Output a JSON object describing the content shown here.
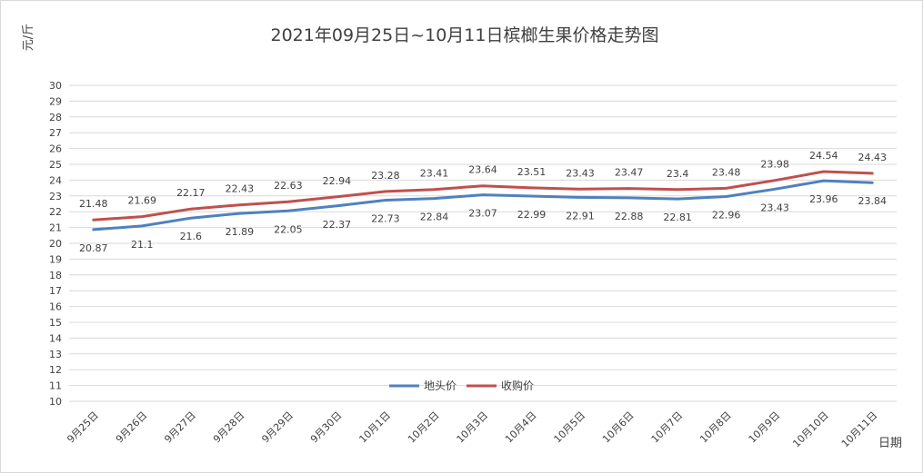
{
  "chart_data": {
    "type": "line",
    "title": "2021年09月25日~10月11日槟榔生果价格走势图",
    "xlabel": "日期",
    "ylabel": "元/斤",
    "ylim": [
      10,
      30
    ],
    "y_ticks": [
      10,
      11,
      12,
      13,
      14,
      15,
      16,
      17,
      18,
      19,
      20,
      21,
      22,
      23,
      24,
      25,
      26,
      27,
      28,
      29,
      30
    ],
    "grid": true,
    "legend_position": "bottom-center",
    "categories": [
      "9月25日",
      "9月26日",
      "9月27日",
      "9月28日",
      "9月29日",
      "9月30日",
      "10月1日",
      "10月2日",
      "10月3日",
      "10月4日",
      "10月5日",
      "10月6日",
      "10月7日",
      "10月8日",
      "10月9日",
      "10月10日",
      "10月11日"
    ],
    "series": [
      {
        "name": "地头价",
        "color": "#4f81bd",
        "values": [
          20.87,
          21.1,
          21.6,
          21.89,
          22.05,
          22.37,
          22.73,
          22.84,
          23.07,
          22.99,
          22.91,
          22.88,
          22.81,
          22.96,
          23.43,
          23.96,
          23.84
        ],
        "labels": [
          "20.87",
          "21.1",
          "21.6",
          "21.89",
          "22.05",
          "22.37",
          "22.73",
          "22.84",
          "23.07",
          "22.99",
          "22.91",
          "22.88",
          "22.81",
          "22.96",
          "23.43",
          "23.96",
          "23.84"
        ],
        "label_position": "below"
      },
      {
        "name": "收购价",
        "color": "#c0504d",
        "values": [
          21.48,
          21.69,
          22.17,
          22.43,
          22.63,
          22.94,
          23.28,
          23.41,
          23.64,
          23.51,
          23.43,
          23.47,
          23.4,
          23.48,
          23.98,
          24.54,
          24.43
        ],
        "labels": [
          "21.48",
          "21.69",
          "22.17",
          "22.43",
          "22.63",
          "22.94",
          "23.28",
          "23.41",
          "23.64",
          "23.51",
          "23.43",
          "23.47",
          "23.4",
          "23.48",
          "23.98",
          "24.54",
          "24.43"
        ],
        "label_position": "above"
      }
    ]
  }
}
